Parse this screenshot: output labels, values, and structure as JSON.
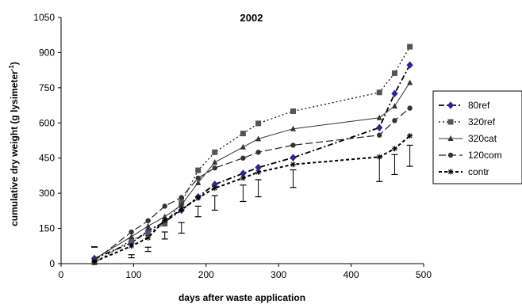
{
  "chart_data": {
    "type": "line",
    "title": "2002",
    "xlabel": "days after waste application",
    "ylabel": "cumulative dry weight (g lysimeter",
    "ylabel_superscript": "-1",
    "ylabel_suffix": ")",
    "xlim": [
      0,
      500
    ],
    "ylim": [
      0,
      1050
    ],
    "x_ticks": [
      0,
      100,
      200,
      300,
      400,
      500
    ],
    "y_ticks": [
      0,
      150,
      300,
      450,
      600,
      750,
      900,
      1050
    ],
    "grid": false,
    "legend_position": "right",
    "series": [
      {
        "name": "80ref",
        "color": "#000000",
        "marker": "diamond",
        "marker_color": "#2a2a8c",
        "dash": "7,3,2,3",
        "width": 1.8,
        "points": [
          [
            46,
            22
          ],
          [
            97,
            88
          ],
          [
            120,
            140
          ],
          [
            143,
            178
          ],
          [
            166,
            228
          ],
          [
            189,
            285
          ],
          [
            212,
            338
          ],
          [
            251,
            385
          ],
          [
            272,
            410
          ],
          [
            320,
            452
          ],
          [
            439,
            580
          ],
          [
            460,
            725
          ],
          [
            481,
            847
          ]
        ]
      },
      {
        "name": "320ref",
        "color": "#000000",
        "marker": "square",
        "marker_color": "#555555",
        "dash": "2,3",
        "width": 1.2,
        "points": [
          [
            46,
            5
          ],
          [
            97,
            100
          ],
          [
            120,
            130
          ],
          [
            143,
            170
          ],
          [
            166,
            260
          ],
          [
            189,
            398
          ],
          [
            212,
            475
          ],
          [
            251,
            555
          ],
          [
            272,
            598
          ],
          [
            320,
            650
          ],
          [
            439,
            730
          ],
          [
            460,
            812
          ],
          [
            481,
            925
          ]
        ]
      },
      {
        "name": "320cat",
        "color": "#333333",
        "marker": "triangle",
        "marker_color": "#333333",
        "dash": "",
        "width": 1,
        "points": [
          [
            46,
            20
          ],
          [
            97,
            115
          ],
          [
            120,
            160
          ],
          [
            143,
            200
          ],
          [
            166,
            250
          ],
          [
            189,
            345
          ],
          [
            212,
            432
          ],
          [
            251,
            497
          ],
          [
            272,
            532
          ],
          [
            320,
            575
          ],
          [
            439,
            622
          ],
          [
            460,
            672
          ],
          [
            481,
            772
          ]
        ]
      },
      {
        "name": "120com",
        "color": "#222222",
        "marker": "circle",
        "marker_color": "#333333",
        "dash": "9,4",
        "width": 1.2,
        "points": [
          [
            46,
            12
          ],
          [
            97,
            135
          ],
          [
            120,
            183
          ],
          [
            143,
            245
          ],
          [
            166,
            282
          ],
          [
            189,
            365
          ],
          [
            212,
            408
          ],
          [
            251,
            450
          ],
          [
            272,
            475
          ],
          [
            320,
            505
          ],
          [
            439,
            548
          ],
          [
            460,
            610
          ],
          [
            481,
            663
          ]
        ]
      },
      {
        "name": "contr",
        "color": "#000000",
        "marker": "asterisk",
        "marker_color": "#000000",
        "dash": "4,3",
        "width": 2,
        "points": [
          [
            46,
            8
          ],
          [
            97,
            75
          ],
          [
            120,
            110
          ],
          [
            143,
            185
          ],
          [
            166,
            230
          ],
          [
            189,
            280
          ],
          [
            212,
            322
          ],
          [
            251,
            365
          ],
          [
            272,
            390
          ],
          [
            320,
            423
          ],
          [
            439,
            455
          ],
          [
            460,
            490
          ],
          [
            481,
            545
          ]
        ]
      }
    ],
    "error_bars": [
      {
        "x": 46,
        "low": 70,
        "high": 72
      },
      {
        "x": 97,
        "low": 25,
        "high": 38
      },
      {
        "x": 120,
        "low": 52,
        "high": 70
      },
      {
        "x": 143,
        "low": 105,
        "high": 135
      },
      {
        "x": 166,
        "low": 130,
        "high": 175
      },
      {
        "x": 189,
        "low": 200,
        "high": 245
      },
      {
        "x": 212,
        "low": 228,
        "high": 290
      },
      {
        "x": 251,
        "low": 265,
        "high": 335
      },
      {
        "x": 272,
        "low": 285,
        "high": 358
      },
      {
        "x": 320,
        "low": 325,
        "high": 400
      },
      {
        "x": 439,
        "low": 350,
        "high": 455
      },
      {
        "x": 460,
        "low": 380,
        "high": 465
      },
      {
        "x": 481,
        "low": 415,
        "high": 505
      }
    ]
  }
}
